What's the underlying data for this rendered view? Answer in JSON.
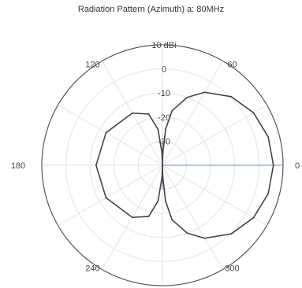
{
  "chart_data": {
    "type": "polar-line",
    "title": "Radiation Pattern (Azimuth) a: 80MHz",
    "radial_axis": {
      "unit": "dBi",
      "min": -40,
      "max": 10,
      "ticks": [
        10,
        0,
        -10,
        -20,
        -30
      ],
      "tick_labels": [
        "10 dBi",
        "0",
        "-10",
        "-20",
        "-30"
      ]
    },
    "angular_axis": {
      "unit": "deg",
      "ticks": [
        0,
        60,
        120,
        180,
        240,
        300
      ],
      "tick_labels": [
        "0",
        "60",
        "120",
        "180",
        "240",
        "300"
      ]
    },
    "grid": true,
    "series": [
      {
        "color": "#444444",
        "points": [
          {
            "azimuth": 0,
            "gain": 6
          },
          {
            "azimuth": 15,
            "gain": 5.4
          },
          {
            "azimuth": 30,
            "gain": 3.6
          },
          {
            "azimuth": 45,
            "gain": 0.3
          },
          {
            "azimuth": 60,
            "gain": -5
          },
          {
            "azimuth": 70,
            "gain": -10
          },
          {
            "azimuth": 80,
            "gain": -17
          },
          {
            "azimuth": 85,
            "gain": -25
          },
          {
            "azimuth": 88,
            "gain": -35
          },
          {
            "azimuth": 90,
            "gain": -40
          },
          {
            "azimuth": 92,
            "gain": -35
          },
          {
            "azimuth": 97,
            "gain": -25
          },
          {
            "azimuth": 105,
            "gain": -18
          },
          {
            "azimuth": 120,
            "gain": -15
          },
          {
            "azimuth": 150,
            "gain": -13
          },
          {
            "azimuth": 180,
            "gain": -12.5
          },
          {
            "azimuth": 210,
            "gain": -13
          },
          {
            "azimuth": 240,
            "gain": -15
          },
          {
            "azimuth": 255,
            "gain": -18
          },
          {
            "azimuth": 263,
            "gain": -25
          },
          {
            "azimuth": 268,
            "gain": -35
          },
          {
            "azimuth": 270,
            "gain": -40
          },
          {
            "azimuth": 272,
            "gain": -35
          },
          {
            "azimuth": 275,
            "gain": -25
          },
          {
            "azimuth": 280,
            "gain": -17
          },
          {
            "azimuth": 290,
            "gain": -10
          },
          {
            "azimuth": 300,
            "gain": -5
          },
          {
            "azimuth": 315,
            "gain": 0.3
          },
          {
            "azimuth": 330,
            "gain": 3.6
          },
          {
            "azimuth": 345,
            "gain": 5.4
          },
          {
            "azimuth": 360,
            "gain": 6
          }
        ]
      }
    ],
    "null_marker": {
      "color": "#6f8fcf",
      "azimuth_start": 90,
      "azimuth_end": 270
    }
  }
}
